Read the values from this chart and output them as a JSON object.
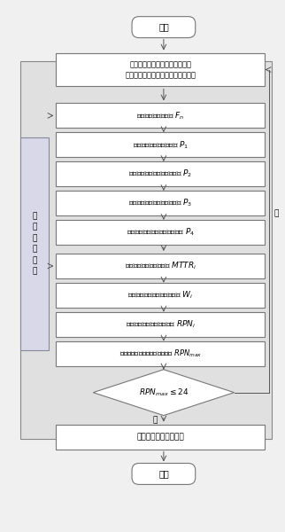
{
  "bg_color": "#e8e8e8",
  "box_fill": "#ffffff",
  "box_edge": "#888888",
  "side_label": "历\n史\n数\n据\n文\n件",
  "start_label": "开始",
  "end_label": "结束",
  "input_label": "输入转子振动、轴瓦金属温度、\n轴承回油温度和润滑油压力的监视值",
  "calc_f_label": "计算轴承的故障概率 $F_n$",
  "p1_label": "由转子振动信号确定系数 $P_1$",
  "p2_label": "由轴瓦金属温度信号确定系数 $P_2$",
  "p3_label": "由轴承回油温度信号确定系数 $P_3$",
  "p4_label": "由轴承润滑油压力信号确定系数 $P_4$",
  "mttr_label": "计算轴承的平均检修时间 $MTTR_i$",
  "wi_label": "确定轴承故障后果的权重系数 $W_i$",
  "rpni_label": "计算轴承的安全风险排序数 $RPN_i$",
  "rpnmax_label": "确定轴承的最大安全风险排序数 $RPN_{max}$",
  "diamond_label": "$RPN_{max}\\leq24$",
  "print_label": "打印安全风险控制措施",
  "yes_label": "是",
  "no_label": "否"
}
